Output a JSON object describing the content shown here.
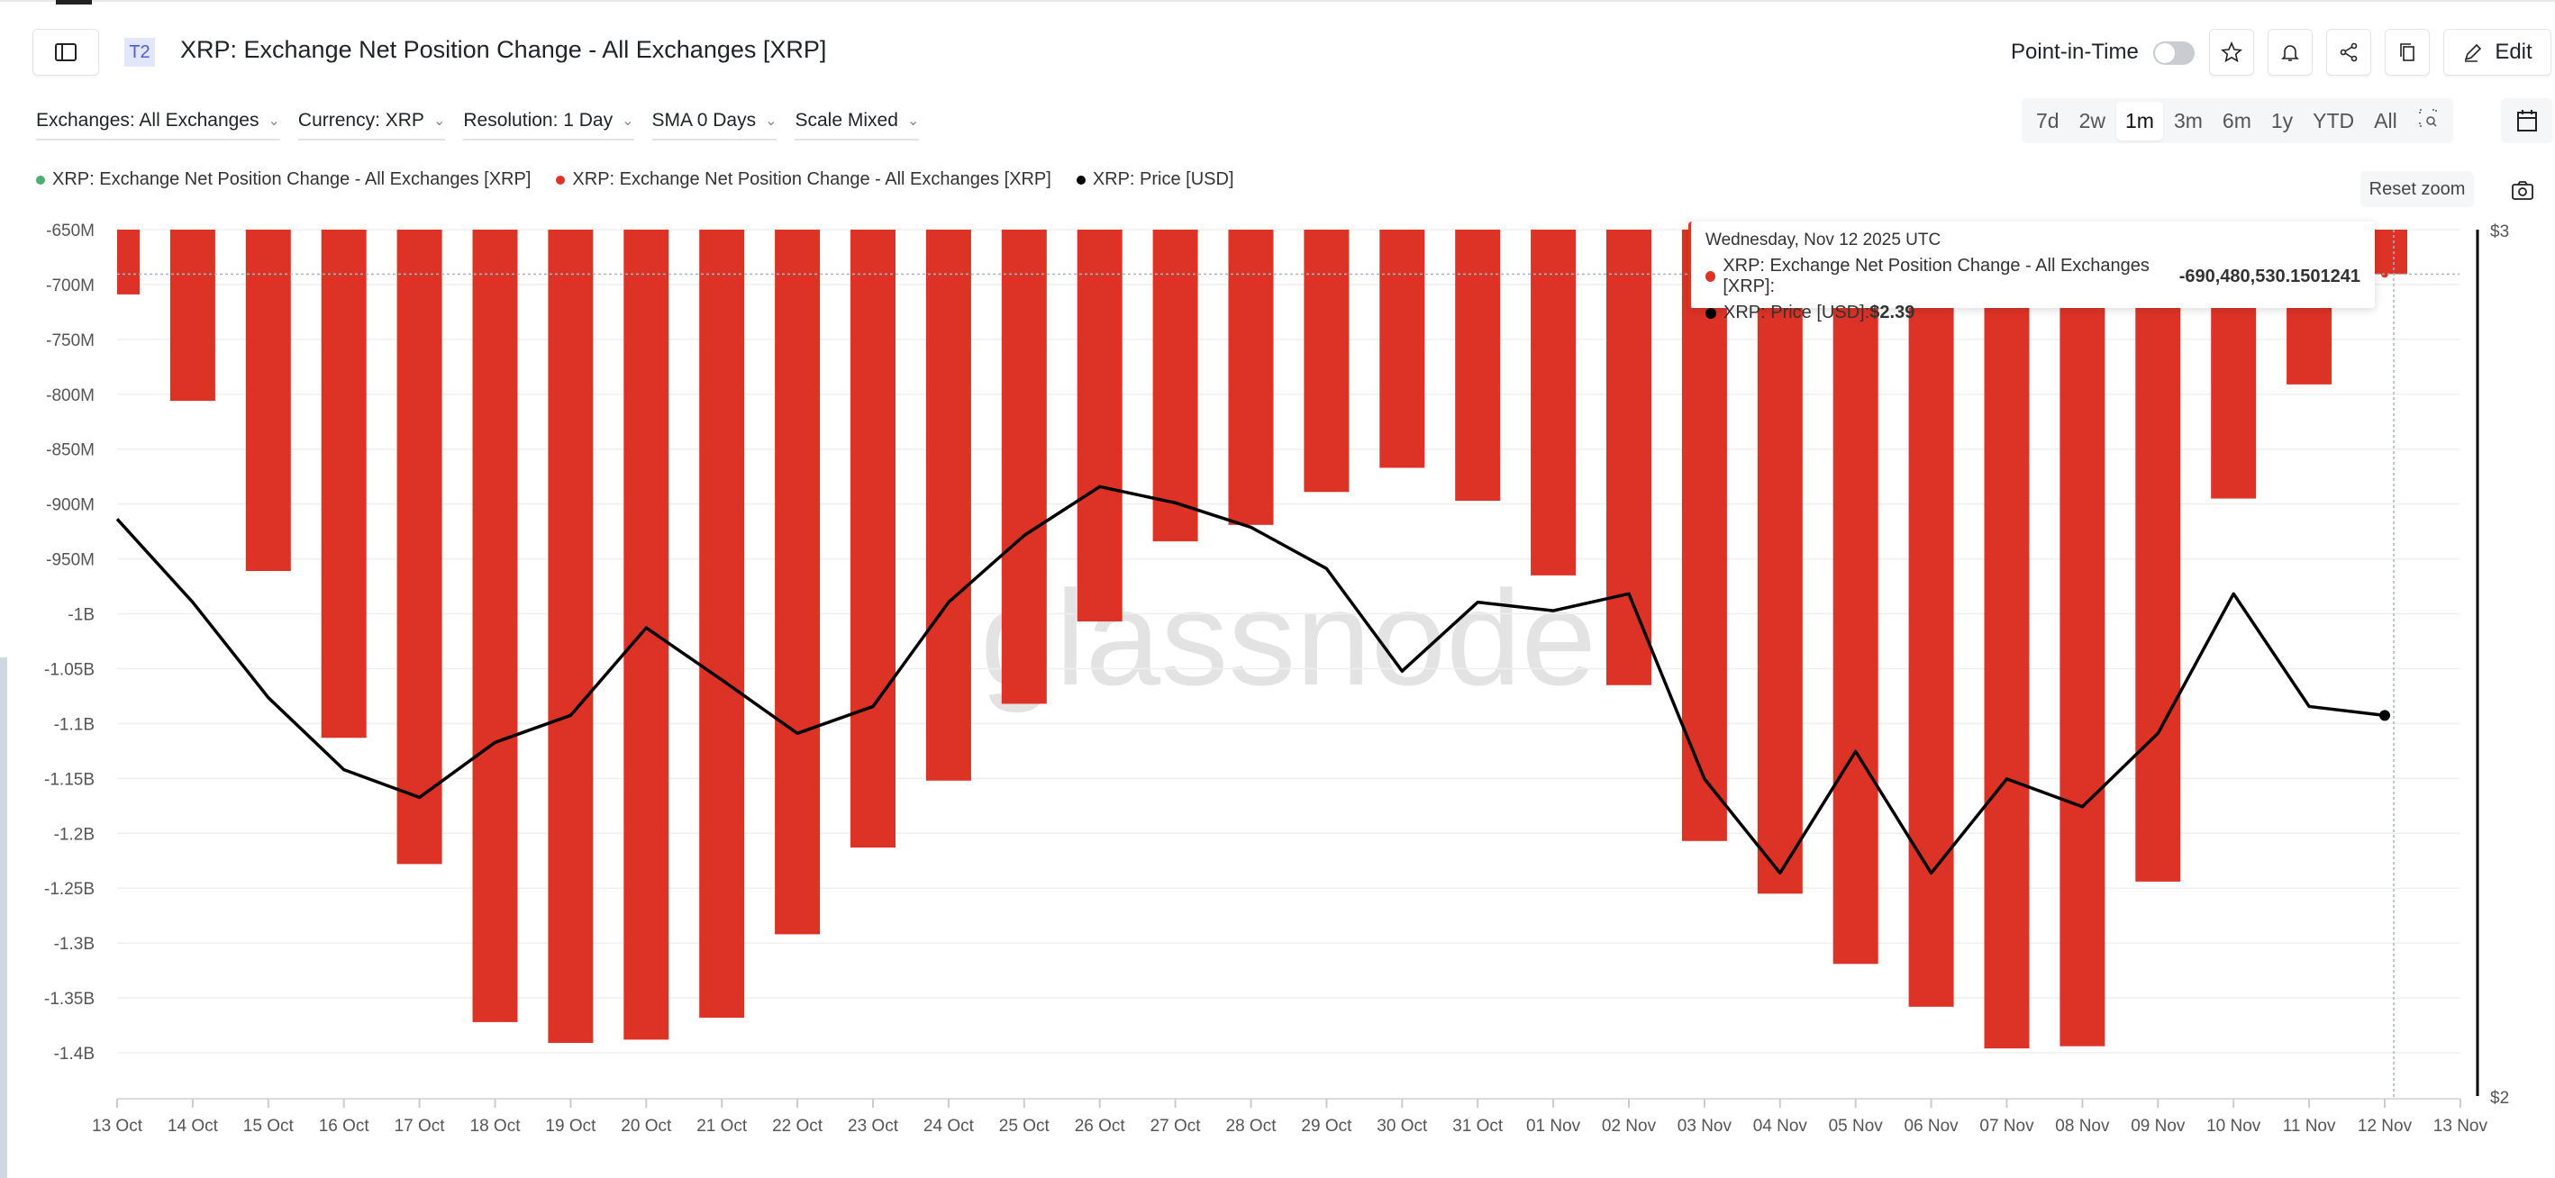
{
  "header": {
    "badge": "T2",
    "title": "XRP: Exchange Net Position Change - All Exchanges [XRP]",
    "point_in_time_label": "Point-in-Time",
    "point_in_time_on": false,
    "edit_label": "Edit"
  },
  "filters": [
    {
      "label": "Exchanges: All Exchanges"
    },
    {
      "label": "Currency: XRP"
    },
    {
      "label": "Resolution: 1 Day"
    },
    {
      "label": "SMA 0 Days"
    },
    {
      "label": "Scale Mixed"
    }
  ],
  "ranges": [
    "7d",
    "2w",
    "1m",
    "3m",
    "6m",
    "1y",
    "YTD",
    "All"
  ],
  "active_range": "1m",
  "reset_zoom": "Reset zoom",
  "legend": [
    {
      "label": "XRP: Exchange Net Position Change - All Exchanges [XRP]",
      "color": "#4caf6e"
    },
    {
      "label": "XRP: Exchange Net Position Change - All Exchanges [XRP]",
      "color": "#dd3326"
    },
    {
      "label": "XRP: Price [USD]",
      "color": "#000000"
    }
  ],
  "tooltip": {
    "date": "Wednesday, Nov 12 2025 UTC",
    "net_label": "XRP: Exchange Net Position Change - All Exchanges [XRP]: ",
    "net_value": "-690,480,530.1501241",
    "price_label": "XRP: Price [USD]: ",
    "price_value": "$2.39"
  },
  "watermark": "glassnode",
  "chart_data": {
    "type": "bar",
    "categories": [
      "13 Oct",
      "14 Oct",
      "15 Oct",
      "16 Oct",
      "17 Oct",
      "18 Oct",
      "19 Oct",
      "20 Oct",
      "21 Oct",
      "22 Oct",
      "23 Oct",
      "24 Oct",
      "25 Oct",
      "26 Oct",
      "27 Oct",
      "28 Oct",
      "29 Oct",
      "30 Oct",
      "31 Oct",
      "01 Nov",
      "02 Nov",
      "03 Nov",
      "04 Nov",
      "05 Nov",
      "06 Nov",
      "07 Nov",
      "08 Nov",
      "09 Nov",
      "10 Nov",
      "11 Nov",
      "12 Nov"
    ],
    "x_tick_labels": [
      "13 Oct",
      "14 Oct",
      "15 Oct",
      "16 Oct",
      "17 Oct",
      "18 Oct",
      "19 Oct",
      "20 Oct",
      "21 Oct",
      "22 Oct",
      "23 Oct",
      "24 Oct",
      "25 Oct",
      "26 Oct",
      "27 Oct",
      "28 Oct",
      "29 Oct",
      "30 Oct",
      "31 Oct",
      "01 Nov",
      "02 Nov",
      "03 Nov",
      "04 Nov",
      "05 Nov",
      "06 Nov",
      "07 Nov",
      "08 Nov",
      "09 Nov",
      "10 Nov",
      "11 Nov",
      "12 Nov",
      "13 Nov"
    ],
    "series": [
      {
        "name": "XRP: Exchange Net Position Change - All Exchanges [XRP]",
        "type": "bar",
        "color": "#dd3326",
        "axis": "left",
        "values": [
          -709000000,
          -806000000,
          -961000000,
          -1113000000,
          -1228000000,
          -1372000000,
          -1391000000,
          -1388000000,
          -1368000000,
          -1292000000,
          -1213000000,
          -1152000000,
          -1082000000,
          -1007000000,
          -934000000,
          -919000000,
          -889000000,
          -867000000,
          -897000000,
          -965000000,
          -1065000000,
          -1207000000,
          -1255000000,
          -1319000000,
          -1358000000,
          -1396000000,
          -1394000000,
          -1244000000,
          -895000000,
          -791000000,
          -690480530.15
        ]
      },
      {
        "name": "XRP: Price [USD]",
        "type": "line",
        "color": "#000000",
        "axis": "right",
        "values": [
          2.62,
          2.52,
          2.41,
          2.33,
          2.3,
          2.36,
          2.39,
          2.49,
          2.43,
          2.37,
          2.4,
          2.52,
          2.6,
          2.66,
          2.64,
          2.61,
          2.56,
          2.44,
          2.52,
          2.51,
          2.53,
          2.32,
          2.22,
          2.35,
          2.22,
          2.32,
          2.29,
          2.37,
          2.53,
          2.4,
          2.39
        ]
      }
    ],
    "y_left": {
      "ylim": [
        -1400000000,
        -650000000
      ],
      "ticks": [
        -650000000,
        -700000000,
        -750000000,
        -800000000,
        -850000000,
        -900000000,
        -950000000,
        -1000000000,
        -1050000000,
        -1100000000,
        -1150000000,
        -1200000000,
        -1250000000,
        -1300000000,
        -1350000000,
        -1400000000
      ],
      "tick_labels": [
        "-650M",
        "-700M",
        "-750M",
        "-800M",
        "-850M",
        "-900M",
        "-950M",
        "-1B",
        "-1.05B",
        "-1.1B",
        "-1.15B",
        "-1.2B",
        "-1.25B",
        "-1.3B",
        "-1.35B",
        "-1.4B"
      ]
    },
    "y_right": {
      "ylim": [
        2,
        3
      ],
      "scale": "log",
      "ticks": [
        3,
        2
      ],
      "tick_labels": [
        "$3",
        "$2"
      ]
    },
    "grid": true,
    "legend_position": "top-left"
  }
}
